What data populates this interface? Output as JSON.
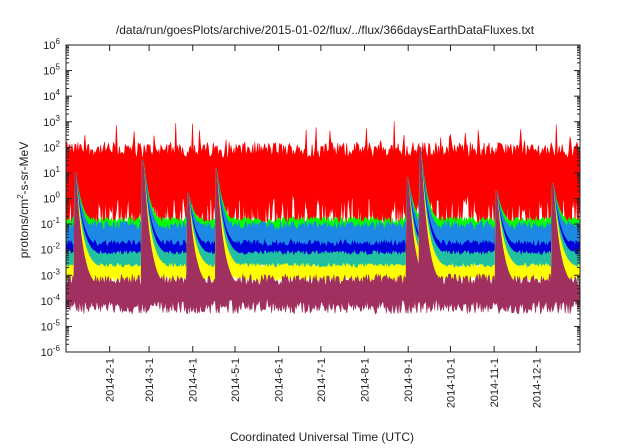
{
  "chart_data": {
    "type": "area",
    "title": "/data/run/goesPlots/archive/2015-01-02/flux/../flux/366daysEarthDataFluxes.txt",
    "xlabel": "Coordinated Universal Time (UTC)",
    "ylabel": {
      "main": "protons/cm",
      "sup": "2",
      "rest": "-s-sr-MeV"
    },
    "yscale": "log",
    "ylim_exp": [
      -6,
      6
    ],
    "ytick_exps": [
      -6,
      -5,
      -4,
      -3,
      -2,
      -1,
      0,
      1,
      2,
      3,
      4,
      5,
      6
    ],
    "ytick_base": "10",
    "xlim": [
      "2014-01-01",
      "2015-01-01"
    ],
    "xticks": [
      {
        "label": "2014-2-1",
        "date": "2014-02-01"
      },
      {
        "label": "2014-3-1",
        "date": "2014-03-01"
      },
      {
        "label": "2014-4-1",
        "date": "2014-04-01"
      },
      {
        "label": "2014-5-1",
        "date": "2014-05-01"
      },
      {
        "label": "2014-6-1",
        "date": "2014-06-01"
      },
      {
        "label": "2014-7-1",
        "date": "2014-07-01"
      },
      {
        "label": "2014-8-1",
        "date": "2014-08-01"
      },
      {
        "label": "2014-9-1",
        "date": "2014-09-01"
      },
      {
        "label": "2014-10-1",
        "date": "2014-10-01"
      },
      {
        "label": "2014-11-1",
        "date": "2014-11-01"
      },
      {
        "label": "2014-12-1",
        "date": "2014-12-01"
      }
    ],
    "grid": false,
    "legend": "none",
    "series": [
      {
        "color": "#ff0000",
        "base_log": 1.3,
        "top_log": 2.0,
        "bottom_log": -1.0
      },
      {
        "color": "#00ff00",
        "base_log": -1.1,
        "top_log": -0.8,
        "bottom_log": -1.4
      },
      {
        "color": "#1e88e5",
        "base_log": -1.4,
        "top_log": -1.0,
        "bottom_log": -2.2
      },
      {
        "color": "#0000dd",
        "base_log": -2.0,
        "top_log": -1.7,
        "bottom_log": -2.3
      },
      {
        "color": "#20c0a0",
        "base_log": -2.3,
        "top_log": -2.1,
        "bottom_log": -2.8
      },
      {
        "color": "#ffff00",
        "base_log": -2.8,
        "top_log": -2.6,
        "bottom_log": -3.2
      },
      {
        "color": "#a03060",
        "base_log": -3.6,
        "top_log": -3.1,
        "bottom_log": -4.3
      }
    ],
    "events": [
      {
        "date": "2014-01-08",
        "peak_log": 1.0
      },
      {
        "date": "2014-02-25",
        "peak_log": 1.5
      },
      {
        "date": "2014-03-29",
        "peak_log": 0.2
      },
      {
        "date": "2014-04-18",
        "peak_log": 1.2
      },
      {
        "date": "2014-09-01",
        "peak_log": 0.8
      },
      {
        "date": "2014-09-10",
        "peak_log": 2.0
      },
      {
        "date": "2014-11-03",
        "peak_log": 0.3
      },
      {
        "date": "2014-12-13",
        "peak_log": 0.6
      }
    ]
  }
}
